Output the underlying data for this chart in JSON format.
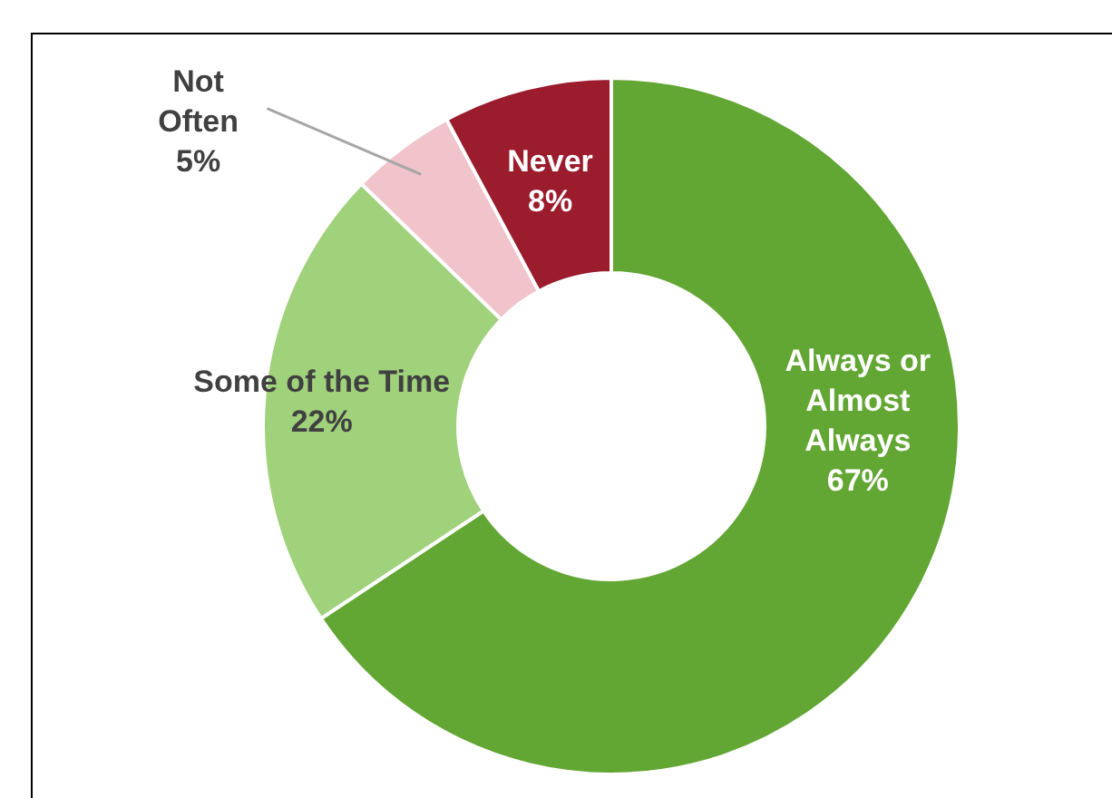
{
  "chart_data": {
    "type": "donut",
    "categories": [
      "Always or Almost Always",
      "Some of the Time",
      "Not Often",
      "Never"
    ],
    "values": [
      67,
      22,
      5,
      8
    ],
    "colors": [
      "#62a633",
      "#a0d17b",
      "#f0c4ca",
      "#9a1c2d"
    ],
    "value_labels": [
      "67%",
      "22%",
      "5%",
      "8%"
    ],
    "legend": false
  }
}
